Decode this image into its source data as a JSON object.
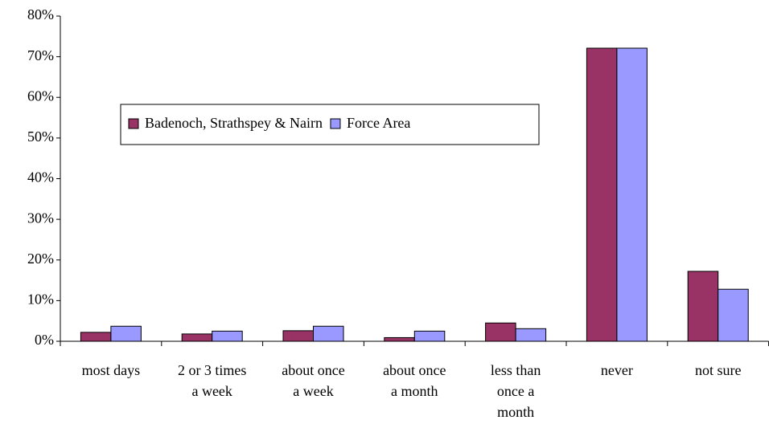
{
  "chart_data": {
    "type": "bar",
    "categories": [
      "most days",
      "2 or 3 times\na week",
      "about once\na week",
      "about once\na month",
      "less than\nonce a\nmonth",
      "never",
      "not sure"
    ],
    "series": [
      {
        "name": "Badenoch, Strathspey & Nairn",
        "color": "#993366",
        "values": [
          2.2,
          1.8,
          2.6,
          0.9,
          4.5,
          72.1,
          17.2
        ]
      },
      {
        "name": "Force Area",
        "color": "#9999ff",
        "values": [
          3.7,
          2.5,
          3.7,
          2.5,
          3.1,
          72.1,
          12.8
        ]
      }
    ],
    "ylim": [
      0,
      80
    ],
    "yticks": [
      {
        "value": 0,
        "label": "0%"
      },
      {
        "value": 10,
        "label": "10%"
      },
      {
        "value": 20,
        "label": "20%"
      },
      {
        "value": 30,
        "label": "30%"
      },
      {
        "value": 40,
        "label": "40%"
      },
      {
        "value": 50,
        "label": "50%"
      },
      {
        "value": 60,
        "label": "60%"
      },
      {
        "value": 70,
        "label": "70%"
      },
      {
        "value": 80,
        "label": "80%"
      }
    ],
    "grid": false
  }
}
